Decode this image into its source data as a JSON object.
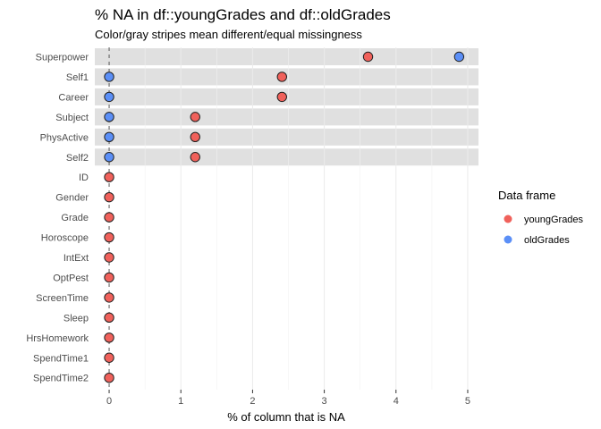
{
  "chart_data": {
    "type": "scatter",
    "title": "% NA in df::youngGrades and df::oldGrades",
    "subtitle": "Color/gray stripes mean different/equal missingness",
    "xlabel": "% of column that is NA",
    "ylabel": "",
    "xlim": [
      -0.2,
      5.15
    ],
    "xticks": [
      0,
      1,
      2,
      3,
      4,
      5
    ],
    "grid": true,
    "stripe_color": "#e0e0e0",
    "legend": {
      "title": "Data frame",
      "placement": "right",
      "entries": [
        {
          "name": "youngGrades",
          "color": "#f0615b"
        },
        {
          "name": "oldGrades",
          "color": "#5b8ff7"
        }
      ]
    },
    "categories": [
      "Superpower",
      "Self1",
      "Career",
      "Subject",
      "PhysActive",
      "Self2",
      "ID",
      "Gender",
      "Grade",
      "Horoscope",
      "IntExt",
      "OptPest",
      "ScreenTime",
      "Sleep",
      "HrsHomework",
      "SpendTime1",
      "SpendTime2"
    ],
    "striped": [
      true,
      true,
      true,
      true,
      true,
      true,
      false,
      false,
      false,
      false,
      false,
      false,
      false,
      false,
      false,
      false,
      false
    ],
    "series": [
      {
        "name": "youngGrades",
        "color": "#f0615b",
        "values": [
          3.61,
          2.41,
          2.41,
          1.2,
          1.2,
          1.2,
          0,
          0,
          0,
          0,
          0,
          0,
          0,
          0,
          0,
          0,
          0
        ]
      },
      {
        "name": "oldGrades",
        "color": "#5b8ff7",
        "values": [
          4.88,
          0,
          0,
          0,
          0,
          0,
          null,
          null,
          null,
          null,
          null,
          null,
          null,
          null,
          null,
          null,
          null
        ]
      }
    ]
  }
}
